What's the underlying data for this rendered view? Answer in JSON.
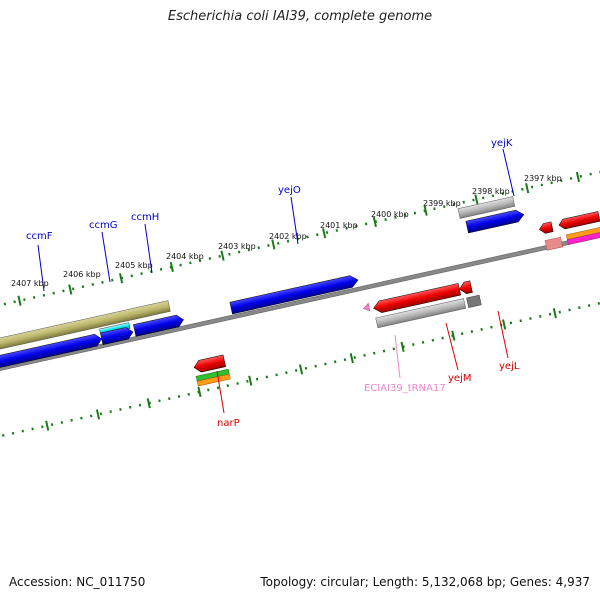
{
  "title": "Escherichia coli IAI39, complete genome",
  "footer": {
    "accession": "Accession: NC_011750",
    "topology": "Topology: circular; Length: 5,132,068 bp; Genes: 4,937"
  },
  "ruler_ticks": [
    "2407 kbp",
    "2406 kbp",
    "2405 kbp",
    "2404 kbp",
    "2403 kbp",
    "2402 kbp",
    "2401 kbp",
    "2400 kbp",
    "2399 kbp",
    "2398 kbp",
    "2397 kbp"
  ],
  "gene_labels": {
    "ccmF": "ccmF",
    "ccmG": "ccmG",
    "ccmH": "ccmH",
    "yejO": "yejO",
    "yejK": "yejK",
    "narP": "narP",
    "trna": "ECIAI39_tRNA17",
    "yejM": "yejM",
    "yejL": "yejL"
  },
  "colors": {
    "forward_gene": "#1010e0",
    "reverse_gene": "#e01010",
    "gray_gene": "#b0b0b0",
    "olive_gene": "#bdb76b",
    "cyan_gene": "#00e5ee",
    "trna": "#ee82c8",
    "backbone": "#808080",
    "tick": "#1a7a1a"
  }
}
